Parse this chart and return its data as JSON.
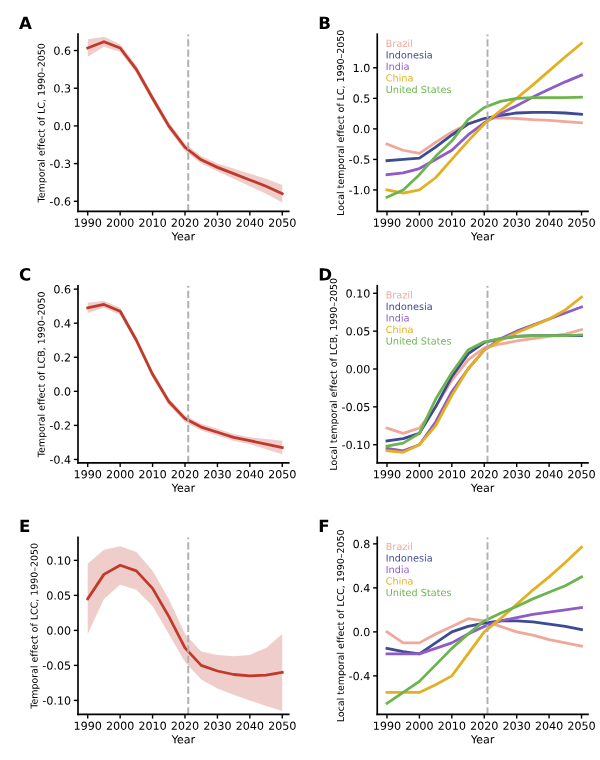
{
  "chart_data": [
    {
      "type": "line",
      "title": "A",
      "xlabel": "Year",
      "ylabel": "Temporal effect of LC, 1990–2050",
      "x": [
        1990,
        1995,
        2000,
        2005,
        2010,
        2015,
        2020,
        2025,
        2030,
        2035,
        2040,
        2045,
        2050
      ],
      "xlim": [
        1987,
        2052
      ],
      "xticks": [
        1990,
        2000,
        2010,
        2020,
        2030,
        2040,
        2050
      ],
      "ylim": [
        -0.68,
        0.73
      ],
      "yticks": [
        {
          "value": -0.6,
          "label": "-0.6"
        },
        {
          "value": -0.3,
          "label": "-0.3"
        },
        {
          "value": 0,
          "label": "0.0"
        },
        {
          "value": 0.3,
          "label": "0.3"
        },
        {
          "value": 0.6,
          "label": "0.6"
        }
      ],
      "ref_lines": [
        {
          "axis": "x",
          "value": 2021,
          "color": "#b0b0b0",
          "line_style": "dashed"
        }
      ],
      "series": [
        {
          "color": "#c0392b",
          "values": [
            0.62,
            0.67,
            0.62,
            0.45,
            0.22,
            0.0,
            -0.17,
            -0.27,
            -0.33,
            -0.38,
            -0.43,
            -0.48,
            -0.54
          ],
          "lower": [
            0.55,
            0.63,
            0.59,
            0.42,
            0.19,
            -0.03,
            -0.2,
            -0.3,
            -0.36,
            -0.42,
            -0.48,
            -0.54,
            -0.61
          ],
          "upper": [
            0.69,
            0.71,
            0.65,
            0.48,
            0.25,
            0.03,
            -0.14,
            -0.24,
            -0.3,
            -0.34,
            -0.38,
            -0.42,
            -0.47
          ]
        }
      ]
    },
    {
      "type": "line",
      "title": "B",
      "xlabel": "Year",
      "ylabel": "Local temporal effect of LC, 1990–2050",
      "x": [
        1990,
        1995,
        2000,
        2005,
        2010,
        2015,
        2020,
        2025,
        2030,
        2035,
        2040,
        2045,
        2050
      ],
      "xlim": [
        1987,
        2052
      ],
      "xticks": [
        1990,
        2000,
        2010,
        2020,
        2030,
        2040,
        2050
      ],
      "ylim": [
        -1.35,
        1.55
      ],
      "yticks": [
        {
          "value": -1,
          "label": "-1.0"
        },
        {
          "value": -0.5,
          "label": "-0.5"
        },
        {
          "value": 0,
          "label": "0.0"
        },
        {
          "value": 0.5,
          "label": "0.5"
        },
        {
          "value": 1,
          "label": "1.0"
        }
      ],
      "ref_lines": [
        {
          "axis": "x",
          "value": 2021,
          "color": "#b0b0b0",
          "line_style": "dashed"
        }
      ],
      "series": [
        {
          "name": "Brazil",
          "color": "#f0a89a",
          "values": [
            -0.25,
            -0.35,
            -0.4,
            -0.22,
            -0.05,
            0.08,
            0.17,
            0.18,
            0.17,
            0.15,
            0.14,
            0.12,
            0.1
          ]
        },
        {
          "name": "Indonesia",
          "color": "#3d4a96",
          "values": [
            -0.52,
            -0.5,
            -0.48,
            -0.3,
            -0.1,
            0.08,
            0.17,
            0.22,
            0.26,
            0.27,
            0.27,
            0.26,
            0.24
          ]
        },
        {
          "name": "India",
          "color": "#8e5cc4",
          "values": [
            -0.75,
            -0.72,
            -0.65,
            -0.5,
            -0.35,
            -0.1,
            0.1,
            0.25,
            0.38,
            0.52,
            0.65,
            0.77,
            0.88
          ]
        },
        {
          "name": "China",
          "color": "#e3b021",
          "values": [
            -1.0,
            -1.05,
            -1.0,
            -0.8,
            -0.5,
            -0.2,
            0.08,
            0.3,
            0.5,
            0.72,
            0.95,
            1.18,
            1.4
          ]
        },
        {
          "name": "United States",
          "color": "#6cb54e",
          "values": [
            -1.12,
            -1.0,
            -0.75,
            -0.45,
            -0.2,
            0.15,
            0.35,
            0.45,
            0.5,
            0.51,
            0.51,
            0.51,
            0.52
          ]
        }
      ]
    },
    {
      "type": "line",
      "title": "C",
      "xlabel": "Year",
      "ylabel": "Temporal effect of LCB, 1990–2050",
      "x": [
        1990,
        1995,
        2000,
        2005,
        2010,
        2015,
        2020,
        2025,
        2030,
        2035,
        2040,
        2045,
        2050
      ],
      "xlim": [
        1987,
        2052
      ],
      "xticks": [
        1990,
        2000,
        2010,
        2020,
        2030,
        2040,
        2050
      ],
      "ylim": [
        -0.42,
        0.62
      ],
      "yticks": [
        {
          "value": -0.4,
          "label": "-0.4"
        },
        {
          "value": -0.2,
          "label": "-0.2"
        },
        {
          "value": 0,
          "label": "0.0"
        },
        {
          "value": 0.2,
          "label": "0.2"
        },
        {
          "value": 0.4,
          "label": "0.4"
        },
        {
          "value": 0.6,
          "label": "0.6"
        }
      ],
      "ref_lines": [
        {
          "axis": "x",
          "value": 2021,
          "color": "#b0b0b0",
          "line_style": "dashed"
        }
      ],
      "series": [
        {
          "color": "#c0392b",
          "values": [
            0.49,
            0.51,
            0.47,
            0.3,
            0.1,
            -0.06,
            -0.16,
            -0.21,
            -0.24,
            -0.27,
            -0.29,
            -0.31,
            -0.33
          ],
          "lower": [
            0.46,
            0.49,
            0.45,
            0.28,
            0.08,
            -0.08,
            -0.18,
            -0.23,
            -0.26,
            -0.29,
            -0.31,
            -0.34,
            -0.37
          ],
          "upper": [
            0.52,
            0.53,
            0.49,
            0.32,
            0.12,
            -0.04,
            -0.14,
            -0.19,
            -0.22,
            -0.25,
            -0.27,
            -0.28,
            -0.29
          ]
        }
      ]
    },
    {
      "type": "line",
      "title": "D",
      "xlabel": "Year",
      "ylabel": "Local temporal effect of LCB, 1990–2050",
      "x": [
        1990,
        1995,
        2000,
        2005,
        2010,
        2015,
        2020,
        2025,
        2030,
        2035,
        2040,
        2045,
        2050
      ],
      "xlim": [
        1987,
        2052
      ],
      "xticks": [
        1990,
        2000,
        2010,
        2020,
        2030,
        2040,
        2050
      ],
      "ylim": [
        -0.124,
        0.11
      ],
      "yticks": [
        {
          "value": -0.1,
          "label": "-0.10"
        },
        {
          "value": -0.05,
          "label": "-0.05"
        },
        {
          "value": 0,
          "label": "0.00"
        },
        {
          "value": 0.05,
          "label": "0.05"
        },
        {
          "value": 0.1,
          "label": "0.10"
        }
      ],
      "ref_lines": [
        {
          "axis": "x",
          "value": 2021,
          "color": "#b0b0b0",
          "line_style": "dashed"
        }
      ],
      "series": [
        {
          "name": "Brazil",
          "color": "#f0a89a",
          "values": [
            -0.078,
            -0.085,
            -0.078,
            -0.05,
            -0.015,
            0.012,
            0.028,
            0.033,
            0.037,
            0.04,
            0.043,
            0.046,
            0.052
          ]
        },
        {
          "name": "Indonesia",
          "color": "#3d4a96",
          "values": [
            -0.095,
            -0.092,
            -0.085,
            -0.05,
            -0.01,
            0.02,
            0.035,
            0.04,
            0.043,
            0.044,
            0.044,
            0.044,
            0.044
          ]
        },
        {
          "name": "India",
          "color": "#8e5cc4",
          "values": [
            -0.105,
            -0.108,
            -0.1,
            -0.07,
            -0.03,
            0.0,
            0.025,
            0.04,
            0.05,
            0.058,
            0.066,
            0.074,
            0.082
          ]
        },
        {
          "name": "China",
          "color": "#e3b021",
          "values": [
            -0.108,
            -0.11,
            -0.1,
            -0.075,
            -0.035,
            0.0,
            0.025,
            0.038,
            0.048,
            0.057,
            0.066,
            0.078,
            0.095
          ]
        },
        {
          "name": "United States",
          "color": "#6cb54e",
          "values": [
            -0.102,
            -0.098,
            -0.085,
            -0.04,
            -0.005,
            0.025,
            0.036,
            0.04,
            0.043,
            0.044,
            0.044,
            0.044,
            0.045
          ]
        }
      ]
    },
    {
      "type": "line",
      "title": "E",
      "xlabel": "Year",
      "ylabel": "Temporal effect of LCC, 1990–2050",
      "x": [
        1990,
        1995,
        2000,
        2005,
        2010,
        2015,
        2020,
        2025,
        2030,
        2035,
        2040,
        2045,
        2050
      ],
      "xlim": [
        1987,
        2052
      ],
      "xticks": [
        1990,
        2000,
        2010,
        2020,
        2030,
        2040,
        2050
      ],
      "ylim": [
        -0.12,
        0.133
      ],
      "yticks": [
        {
          "value": -0.1,
          "label": "-0.10"
        },
        {
          "value": -0.05,
          "label": "-0.05"
        },
        {
          "value": 0,
          "label": "0.00"
        },
        {
          "value": 0.05,
          "label": "0.05"
        },
        {
          "value": 0.1,
          "label": "0.10"
        }
      ],
      "ref_lines": [
        {
          "axis": "x",
          "value": 2021,
          "color": "#b0b0b0",
          "line_style": "dashed"
        }
      ],
      "series": [
        {
          "color": "#c0392b",
          "values": [
            0.045,
            0.08,
            0.093,
            0.085,
            0.06,
            0.02,
            -0.025,
            -0.05,
            -0.058,
            -0.063,
            -0.065,
            -0.064,
            -0.06
          ],
          "lower": [
            -0.005,
            0.045,
            0.065,
            0.058,
            0.035,
            -0.005,
            -0.045,
            -0.07,
            -0.083,
            -0.092,
            -0.1,
            -0.108,
            -0.115
          ],
          "upper": [
            0.095,
            0.115,
            0.12,
            0.112,
            0.085,
            0.045,
            -0.005,
            -0.03,
            -0.035,
            -0.037,
            -0.035,
            -0.025,
            -0.005
          ]
        }
      ]
    },
    {
      "type": "line",
      "title": "F",
      "xlabel": "Year",
      "ylabel": "Local temporal effect of LCC, 1990–2050",
      "x": [
        1990,
        1995,
        2000,
        2005,
        2010,
        2015,
        2020,
        2025,
        2030,
        2035,
        2040,
        2045,
        2050
      ],
      "xlim": [
        1987,
        2052
      ],
      "xticks": [
        1990,
        2000,
        2010,
        2020,
        2030,
        2040,
        2050
      ],
      "ylim": [
        -0.75,
        0.86
      ],
      "yticks": [
        {
          "value": -0.4,
          "label": "-0.4"
        },
        {
          "value": 0,
          "label": "0.0"
        },
        {
          "value": 0.4,
          "label": "0.4"
        },
        {
          "value": 0.8,
          "label": "0.8"
        }
      ],
      "ref_lines": [
        {
          "axis": "x",
          "value": 2021,
          "color": "#b0b0b0",
          "line_style": "dashed"
        }
      ],
      "series": [
        {
          "name": "Brazil",
          "color": "#f0a89a",
          "values": [
            0.0,
            -0.1,
            -0.1,
            -0.02,
            0.05,
            0.12,
            0.1,
            0.05,
            0.0,
            -0.03,
            -0.07,
            -0.1,
            -0.13
          ]
        },
        {
          "name": "Indonesia",
          "color": "#3d4a96",
          "values": [
            -0.15,
            -0.18,
            -0.2,
            -0.1,
            0.0,
            0.05,
            0.08,
            0.1,
            0.1,
            0.09,
            0.07,
            0.05,
            0.02
          ]
        },
        {
          "name": "India",
          "color": "#8e5cc4",
          "values": [
            -0.2,
            -0.2,
            -0.2,
            -0.15,
            -0.1,
            -0.02,
            0.05,
            0.1,
            0.13,
            0.16,
            0.18,
            0.2,
            0.22
          ]
        },
        {
          "name": "China",
          "color": "#e3b021",
          "values": [
            -0.55,
            -0.55,
            -0.55,
            -0.48,
            -0.4,
            -0.2,
            0.0,
            0.12,
            0.25,
            0.38,
            0.5,
            0.63,
            0.77
          ]
        },
        {
          "name": "United States",
          "color": "#6cb54e",
          "values": [
            -0.65,
            -0.55,
            -0.45,
            -0.3,
            -0.15,
            -0.02,
            0.1,
            0.17,
            0.23,
            0.3,
            0.36,
            0.42,
            0.5
          ]
        }
      ]
    }
  ]
}
